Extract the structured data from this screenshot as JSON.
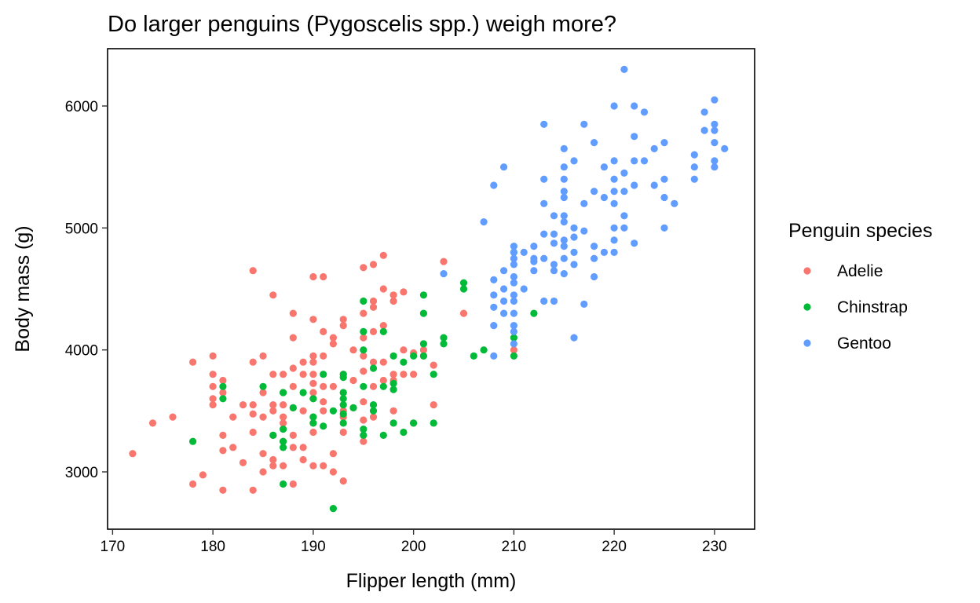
{
  "chart_data": {
    "type": "scatter",
    "title": "Do larger penguins (Pygoscelis spp.) weigh more?",
    "xlabel": "Flipper length (mm)",
    "ylabel": "Body mass (g)",
    "xlim": [
      169.5,
      234
    ],
    "ylim": [
      2530,
      6470
    ],
    "x_ticks": [
      170,
      180,
      190,
      200,
      210,
      220,
      230
    ],
    "y_ticks": [
      3000,
      4000,
      5000,
      6000
    ],
    "grid": false,
    "legend": {
      "title": "Penguin species",
      "position": "right"
    },
    "series": [
      {
        "name": "Adelie",
        "color": "#F8766D",
        "points": [
          [
            172,
            3150
          ],
          [
            174,
            3400
          ],
          [
            176,
            3450
          ],
          [
            178,
            3900
          ],
          [
            178,
            2900
          ],
          [
            179,
            2975
          ],
          [
            180,
            3950
          ],
          [
            180,
            3800
          ],
          [
            180,
            3600
          ],
          [
            180,
            3550
          ],
          [
            180,
            3700
          ],
          [
            181,
            3750
          ],
          [
            181,
            3650
          ],
          [
            181,
            3300
          ],
          [
            181,
            3175
          ],
          [
            181,
            2850
          ],
          [
            182,
            3450
          ],
          [
            182,
            3200
          ],
          [
            183,
            3550
          ],
          [
            183,
            3075
          ],
          [
            184,
            4650
          ],
          [
            184,
            3900
          ],
          [
            184,
            3550
          ],
          [
            184,
            3475
          ],
          [
            184,
            3325
          ],
          [
            184,
            2850
          ],
          [
            185,
            3950
          ],
          [
            185,
            3650
          ],
          [
            185,
            3450
          ],
          [
            185,
            3150
          ],
          [
            185,
            3000
          ],
          [
            186,
            4450
          ],
          [
            186,
            3800
          ],
          [
            186,
            3550
          ],
          [
            186,
            3500
          ],
          [
            186,
            3300
          ],
          [
            186,
            3100
          ],
          [
            186,
            3050
          ],
          [
            187,
            3800
          ],
          [
            187,
            3650
          ],
          [
            187,
            3550
          ],
          [
            187,
            3450
          ],
          [
            187,
            3400
          ],
          [
            187,
            3250
          ],
          [
            187,
            3050
          ],
          [
            188,
            4300
          ],
          [
            188,
            4100
          ],
          [
            188,
            3850
          ],
          [
            188,
            3700
          ],
          [
            188,
            3525
          ],
          [
            188,
            3300
          ],
          [
            188,
            3200
          ],
          [
            188,
            2900
          ],
          [
            189,
            3900
          ],
          [
            189,
            3800
          ],
          [
            189,
            3500
          ],
          [
            189,
            3200
          ],
          [
            189,
            3100
          ],
          [
            190,
            4600
          ],
          [
            190,
            4250
          ],
          [
            190,
            3950
          ],
          [
            190,
            3900
          ],
          [
            190,
            3800
          ],
          [
            190,
            3725
          ],
          [
            190,
            3650
          ],
          [
            190,
            3600
          ],
          [
            190,
            3450
          ],
          [
            190,
            3400
          ],
          [
            190,
            3325
          ],
          [
            190,
            3050
          ],
          [
            191,
            4600
          ],
          [
            191,
            4150
          ],
          [
            191,
            3950
          ],
          [
            191,
            3700
          ],
          [
            191,
            3575
          ],
          [
            191,
            3500
          ],
          [
            191,
            3050
          ],
          [
            192,
            4100
          ],
          [
            192,
            4050
          ],
          [
            192,
            3700
          ],
          [
            192,
            3150
          ],
          [
            192,
            3000
          ],
          [
            193,
            4250
          ],
          [
            193,
            4200
          ],
          [
            193,
            3800
          ],
          [
            193,
            3650
          ],
          [
            193,
            3500
          ],
          [
            193,
            3450
          ],
          [
            193,
            3325
          ],
          [
            193,
            2925
          ],
          [
            194,
            4000
          ],
          [
            194,
            3750
          ],
          [
            194,
            3525
          ],
          [
            195,
            4675
          ],
          [
            195,
            4300
          ],
          [
            195,
            4100
          ],
          [
            195,
            3950
          ],
          [
            195,
            3825
          ],
          [
            195,
            3575
          ],
          [
            195,
            3425
          ],
          [
            195,
            3250
          ],
          [
            196,
            4700
          ],
          [
            196,
            4400
          ],
          [
            196,
            4350
          ],
          [
            196,
            4150
          ],
          [
            196,
            3900
          ],
          [
            196,
            3700
          ],
          [
            196,
            3450
          ],
          [
            197,
            4775
          ],
          [
            197,
            4500
          ],
          [
            197,
            4200
          ],
          [
            197,
            3900
          ],
          [
            197,
            3750
          ],
          [
            198,
            4450
          ],
          [
            198,
            4400
          ],
          [
            198,
            3800
          ],
          [
            198,
            3750
          ],
          [
            198,
            3500
          ],
          [
            199,
            4475
          ],
          [
            199,
            4000
          ],
          [
            199,
            3800
          ],
          [
            200,
            3975
          ],
          [
            200,
            3800
          ],
          [
            200,
            3400
          ],
          [
            201,
            4000
          ],
          [
            201,
            3950
          ],
          [
            202,
            3875
          ],
          [
            202,
            3550
          ],
          [
            203,
            4725
          ],
          [
            205,
            4300
          ],
          [
            210,
            4000
          ]
        ]
      },
      {
        "name": "Chinstrap",
        "color": "#00BA38",
        "points": [
          [
            178,
            3250
          ],
          [
            181,
            3700
          ],
          [
            181,
            3600
          ],
          [
            185,
            3700
          ],
          [
            186,
            3300
          ],
          [
            187,
            3650
          ],
          [
            187,
            3350
          ],
          [
            187,
            3250
          ],
          [
            187,
            3200
          ],
          [
            187,
            2900
          ],
          [
            188,
            3525
          ],
          [
            189,
            3650
          ],
          [
            190,
            3600
          ],
          [
            190,
            3450
          ],
          [
            190,
            3400
          ],
          [
            191,
            3800
          ],
          [
            191,
            3375
          ],
          [
            192,
            3500
          ],
          [
            192,
            2700
          ],
          [
            193,
            3800
          ],
          [
            193,
            3650
          ],
          [
            193,
            3600
          ],
          [
            193,
            3550
          ],
          [
            193,
            3475
          ],
          [
            193,
            3400
          ],
          [
            193,
            3775
          ],
          [
            194,
            3525
          ],
          [
            195,
            4400
          ],
          [
            195,
            4150
          ],
          [
            195,
            4000
          ],
          [
            195,
            3700
          ],
          [
            195,
            3300
          ],
          [
            195,
            3350
          ],
          [
            196,
            3850
          ],
          [
            196,
            3550
          ],
          [
            196,
            3500
          ],
          [
            197,
            4150
          ],
          [
            197,
            3700
          ],
          [
            197,
            3300
          ],
          [
            198,
            3950
          ],
          [
            198,
            3725
          ],
          [
            198,
            3675
          ],
          [
            198,
            3400
          ],
          [
            199,
            3900
          ],
          [
            199,
            3325
          ],
          [
            200,
            3950
          ],
          [
            200,
            3400
          ],
          [
            201,
            4450
          ],
          [
            201,
            4300
          ],
          [
            201,
            4050
          ],
          [
            201,
            3950
          ],
          [
            202,
            3800
          ],
          [
            202,
            3400
          ],
          [
            203,
            4100
          ],
          [
            203,
            4050
          ],
          [
            205,
            4550
          ],
          [
            205,
            4500
          ],
          [
            206,
            3950
          ],
          [
            207,
            4000
          ],
          [
            210,
            4800
          ],
          [
            210,
            4100
          ],
          [
            210,
            3950
          ],
          [
            212,
            4300
          ]
        ]
      },
      {
        "name": "Gentoo",
        "color": "#619CFF",
        "points": [
          [
            203,
            4625
          ],
          [
            207,
            5050
          ],
          [
            208,
            5350
          ],
          [
            208,
            4575
          ],
          [
            208,
            4450
          ],
          [
            208,
            4350
          ],
          [
            208,
            4200
          ],
          [
            208,
            3950
          ],
          [
            209,
            5500
          ],
          [
            209,
            4650
          ],
          [
            209,
            4500
          ],
          [
            209,
            4400
          ],
          [
            209,
            4300
          ],
          [
            210,
            4850
          ],
          [
            210,
            4800
          ],
          [
            210,
            4750
          ],
          [
            210,
            4700
          ],
          [
            210,
            4600
          ],
          [
            210,
            4550
          ],
          [
            210,
            4450
          ],
          [
            210,
            4400
          ],
          [
            210,
            4300
          ],
          [
            210,
            4200
          ],
          [
            210,
            4150
          ],
          [
            210,
            4050
          ],
          [
            211,
            4800
          ],
          [
            211,
            4500
          ],
          [
            212,
            4850
          ],
          [
            212,
            4750
          ],
          [
            212,
            4725
          ],
          [
            212,
            4650
          ],
          [
            213,
            5850
          ],
          [
            213,
            5400
          ],
          [
            213,
            5200
          ],
          [
            213,
            4950
          ],
          [
            213,
            4750
          ],
          [
            213,
            4400
          ],
          [
            214,
            5100
          ],
          [
            214,
            4950
          ],
          [
            214,
            4875
          ],
          [
            214,
            4700
          ],
          [
            214,
            4650
          ],
          [
            214,
            4400
          ],
          [
            215,
            5650
          ],
          [
            215,
            5500
          ],
          [
            215,
            5400
          ],
          [
            215,
            5300
          ],
          [
            215,
            5250
          ],
          [
            215,
            5100
          ],
          [
            215,
            5050
          ],
          [
            215,
            4900
          ],
          [
            215,
            4850
          ],
          [
            215,
            4750
          ],
          [
            215,
            4625
          ],
          [
            216,
            5550
          ],
          [
            216,
            5000
          ],
          [
            216,
            4925
          ],
          [
            216,
            4800
          ],
          [
            216,
            4700
          ],
          [
            216,
            4100
          ],
          [
            217,
            5850
          ],
          [
            217,
            5200
          ],
          [
            217,
            4975
          ],
          [
            217,
            4375
          ],
          [
            218,
            5700
          ],
          [
            218,
            5300
          ],
          [
            218,
            4850
          ],
          [
            218,
            4750
          ],
          [
            218,
            4600
          ],
          [
            219,
            5500
          ],
          [
            219,
            5250
          ],
          [
            219,
            4800
          ],
          [
            220,
            6000
          ],
          [
            220,
            5550
          ],
          [
            220,
            5400
          ],
          [
            220,
            5300
          ],
          [
            220,
            5200
          ],
          [
            220,
            5000
          ],
          [
            220,
            4900
          ],
          [
            220,
            4800
          ],
          [
            221,
            6300
          ],
          [
            221,
            5450
          ],
          [
            221,
            5300
          ],
          [
            221,
            5100
          ],
          [
            221,
            5000
          ],
          [
            222,
            6000
          ],
          [
            222,
            5750
          ],
          [
            222,
            5550
          ],
          [
            222,
            5350
          ],
          [
            222,
            4875
          ],
          [
            223,
            5950
          ],
          [
            223,
            5550
          ],
          [
            224,
            5650
          ],
          [
            224,
            5350
          ],
          [
            225,
            5700
          ],
          [
            225,
            5400
          ],
          [
            225,
            5250
          ],
          [
            225,
            5000
          ],
          [
            226,
            5200
          ],
          [
            228,
            5600
          ],
          [
            228,
            5500
          ],
          [
            228,
            5400
          ],
          [
            229,
            5950
          ],
          [
            229,
            5800
          ],
          [
            230,
            6050
          ],
          [
            230,
            5850
          ],
          [
            230,
            5800
          ],
          [
            230,
            5700
          ],
          [
            230,
            5550
          ],
          [
            230,
            5500
          ],
          [
            231,
            5650
          ]
        ]
      }
    ]
  }
}
